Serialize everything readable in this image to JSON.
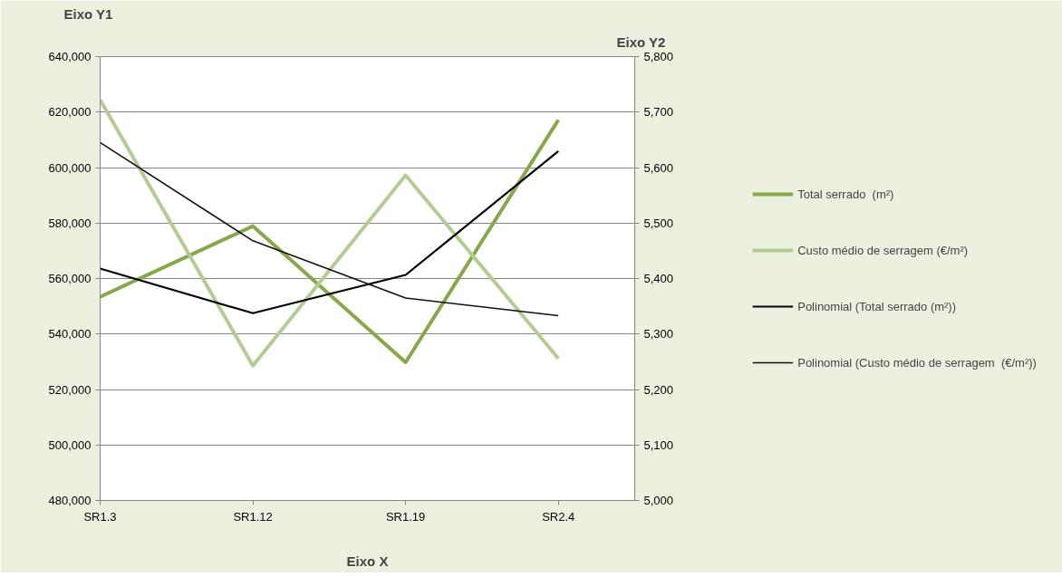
{
  "chart_data": {
    "type": "line",
    "xlabel": "Eixo X",
    "ylabel": "Eixo Y1",
    "y2label": "Eixo Y2",
    "categories": [
      "SR1.3",
      "SR1.12",
      "SR1.19",
      "SR2.4"
    ],
    "series": [
      {
        "name": "Total serrado  (m²)",
        "color": "#86a84a",
        "values": [
          553400,
          578900,
          529800,
          617200
        ]
      },
      {
        "name": "Custo médio de serragem (€/m²)",
        "color": "#b4cc94",
        "axis": "y2",
        "values": [
          5722,
          5243,
          5586,
          5256
        ]
      },
      {
        "name": "Polinomial (Total serrado (m²))",
        "color": "#000000",
        "x": [
          "SR1.3",
          "SR1.12",
          "SR1.19",
          "SR2.4"
        ],
        "values": [
          563600,
          547500,
          561300,
          605900
        ]
      },
      {
        "name": "Polinomial (Custo médio de serragem  (€/m²))",
        "color": "#111111",
        "x": [
          "SR1.3",
          "SR1.12",
          "SR1.19",
          "SR2.4"
        ],
        "axis": "y2",
        "values": [
          5645,
          5468,
          5365,
          5333
        ]
      }
    ],
    "ylim": [
      480000,
      640000
    ],
    "yticks": [
      {
        "value": 480000,
        "label": "480,000"
      },
      {
        "value": 500000,
        "label": "500,000"
      },
      {
        "value": 520000,
        "label": "520,000"
      },
      {
        "value": 540000,
        "label": "540,000"
      },
      {
        "value": 560000,
        "label": "560,000"
      },
      {
        "value": 580000,
        "label": "580,000"
      },
      {
        "value": 600000,
        "label": "600,000"
      },
      {
        "value": 620000,
        "label": "620,000"
      },
      {
        "value": 640000,
        "label": "640,000"
      }
    ],
    "y2lim": [
      5000,
      5800
    ],
    "y2ticks": [
      {
        "value": 5000,
        "label": "5,000"
      },
      {
        "value": 5100,
        "label": "5,100"
      },
      {
        "value": 5200,
        "label": "5,200"
      },
      {
        "value": 5300,
        "label": "5,300"
      },
      {
        "value": 5400,
        "label": "5,400"
      },
      {
        "value": 5500,
        "label": "5,500"
      },
      {
        "value": 5600,
        "label": "5,600"
      },
      {
        "value": 5700,
        "label": "5,700"
      },
      {
        "value": 5800,
        "label": "5,800"
      }
    ],
    "grid": "y",
    "legend": "right",
    "marker": "none",
    "line_style": "solid"
  }
}
